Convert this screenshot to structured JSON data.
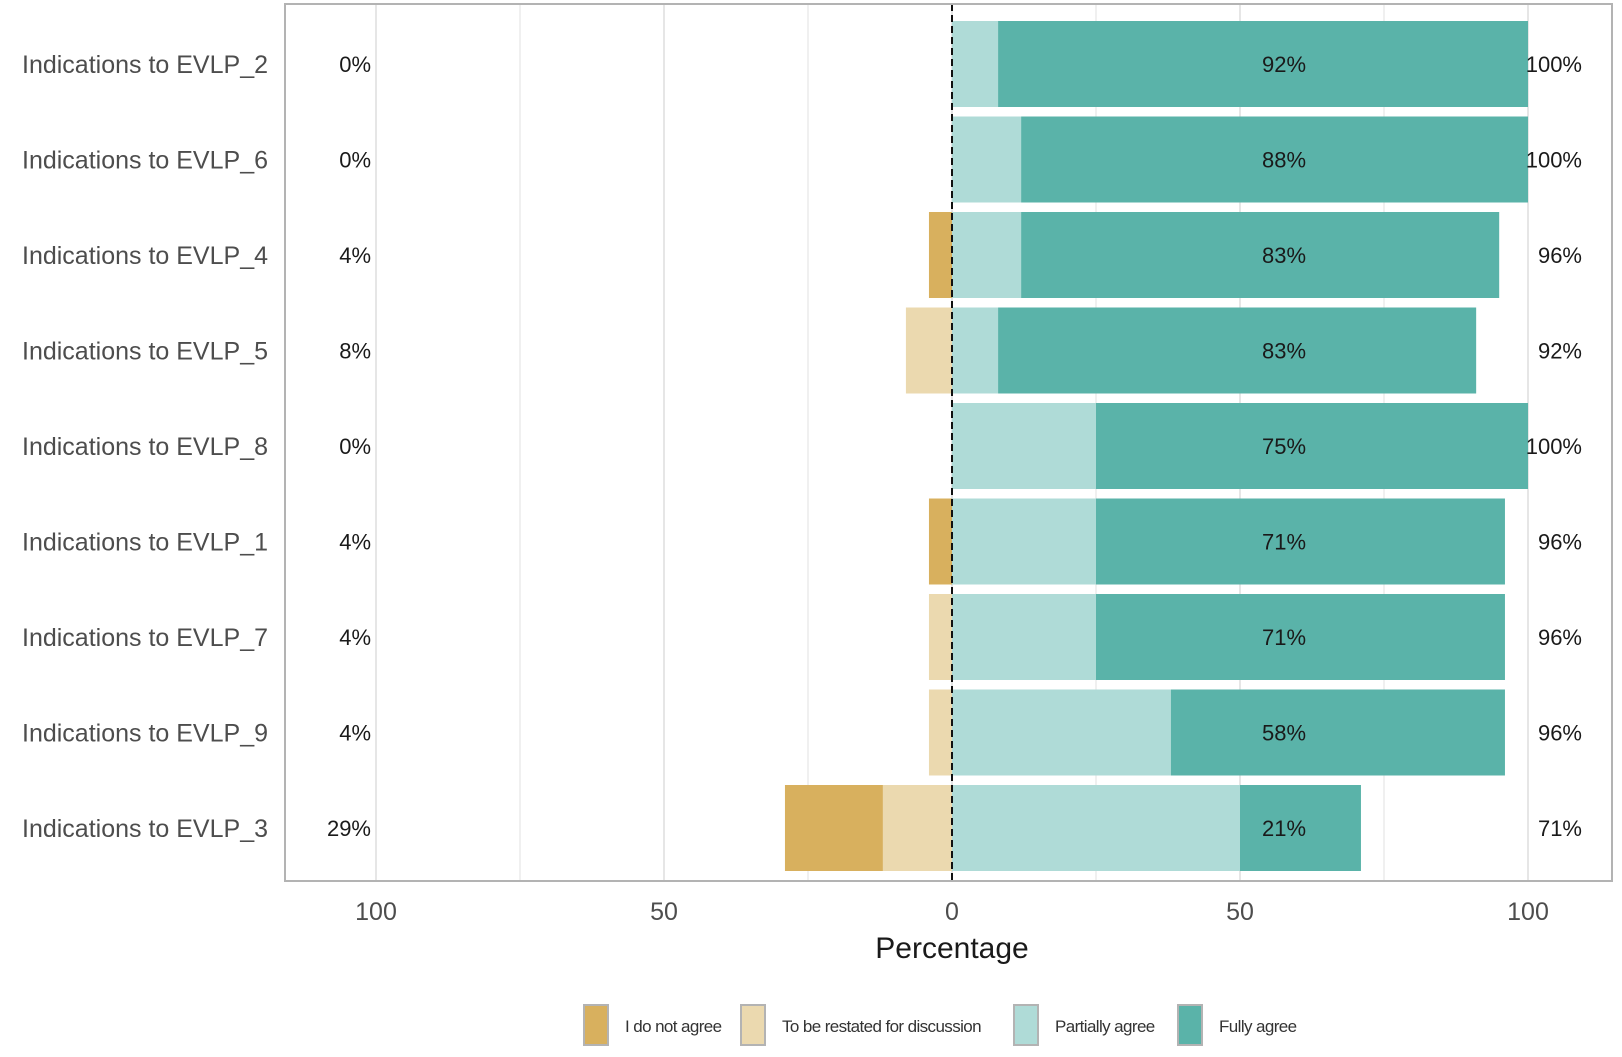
{
  "chart_data": {
    "type": "bar",
    "orientation": "horizontal",
    "stacking": "diverging",
    "categories": [
      "Indications to EVLP_2",
      "Indications to EVLP_6",
      "Indications to EVLP_4",
      "Indications to EVLP_5",
      "Indications to EVLP_8",
      "Indications to EVLP_1",
      "Indications to EVLP_7",
      "Indications to EVLP_9",
      "Indications to EVLP_3"
    ],
    "series": [
      {
        "name": "I do not agree",
        "color": "#d8b05e",
        "side": "negative",
        "values": [
          0,
          0,
          4,
          0,
          0,
          4,
          0,
          0,
          17
        ]
      },
      {
        "name": "To be restated for discussion",
        "color": "#ebd9af",
        "side": "negative",
        "values": [
          0,
          0,
          0,
          8,
          0,
          0,
          4,
          4,
          12
        ]
      },
      {
        "name": "Partially agree",
        "color": "#afdbd7",
        "side": "positive",
        "values": [
          8,
          12,
          12,
          8,
          25,
          25,
          25,
          38,
          50
        ]
      },
      {
        "name": "Fully agree",
        "color": "#5ab3a9",
        "side": "positive",
        "values": [
          92,
          88,
          83,
          83,
          75,
          71,
          71,
          58,
          21
        ]
      }
    ],
    "left_labels": [
      "0%",
      "0%",
      "4%",
      "8%",
      "0%",
      "4%",
      "4%",
      "4%",
      "29%"
    ],
    "center_labels": [
      "92%",
      "88%",
      "83%",
      "83%",
      "75%",
      "71%",
      "71%",
      "58%",
      "21%"
    ],
    "right_labels": [
      "100%",
      "100%",
      "96%",
      "92%",
      "100%",
      "96%",
      "96%",
      "96%",
      "71%"
    ],
    "xlabel": "Percentage",
    "ylabel": "",
    "title": "",
    "xlim": [
      -100,
      100
    ],
    "x_ticks": [
      -100,
      -50,
      0,
      50,
      100
    ],
    "x_tick_labels": [
      "100",
      "50",
      "0",
      "50",
      "100"
    ],
    "grid": true,
    "zero_line": "dashed",
    "legend_position": "bottom"
  }
}
